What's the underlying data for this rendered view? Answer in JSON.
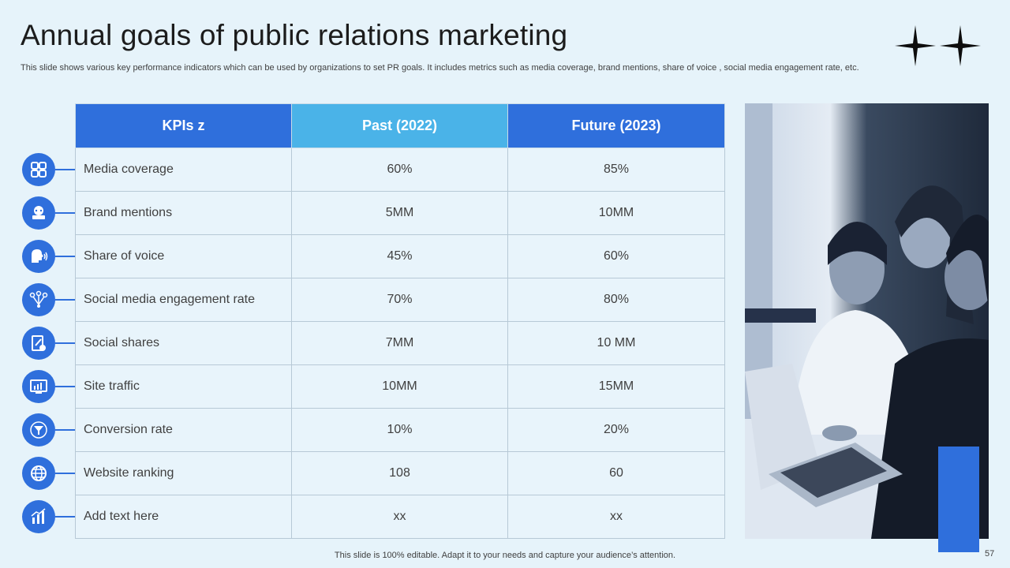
{
  "slide": {
    "title": "Annual goals of public relations marketing",
    "subtitle": "This slide shows various key performance indicators which can be used by organizations to set PR goals. It includes metrics such as media coverage, brand mentions, share of voice , social media engagement rate, etc.",
    "footer": "This slide is 100% editable. Adapt it to your needs and capture your audience’s attention.",
    "page_number": "57"
  },
  "table": {
    "headers": [
      "KPIs z",
      "Past (2022)",
      "Future (2023)"
    ],
    "rows": [
      {
        "kpi": "Media coverage",
        "past": "60%",
        "future": "85%",
        "icon": "media-coverage-icon"
      },
      {
        "kpi": "Brand mentions",
        "past": "5MM",
        "future": "10MM",
        "icon": "brand-mentions-icon"
      },
      {
        "kpi": "Share of voice",
        "past": "45%",
        "future": "60%",
        "icon": "share-of-voice-icon"
      },
      {
        "kpi": "Social media engagement rate",
        "past": "70%",
        "future": "80%",
        "icon": "social-network-icon"
      },
      {
        "kpi": "Social shares",
        "past": "7MM",
        "future": "10 MM",
        "icon": "social-shares-icon"
      },
      {
        "kpi": "Site traffic",
        "past": "10MM",
        "future": "15MM",
        "icon": "site-traffic-icon"
      },
      {
        "kpi": "Conversion rate",
        "past": "10%",
        "future": "20%",
        "icon": "conversion-funnel-icon"
      },
      {
        "kpi": "Website ranking",
        "past": "108",
        "future": "60",
        "icon": "globe-icon"
      },
      {
        "kpi": "Add text here",
        "past": "xx",
        "future": "xx",
        "icon": "bar-chart-icon"
      }
    ]
  },
  "colors": {
    "background": "#e6f3fa",
    "primary_blue": "#2f6fdc",
    "light_blue": "#4ab3e8",
    "title_text": "#1c1c1c",
    "body_text": "#404040"
  }
}
